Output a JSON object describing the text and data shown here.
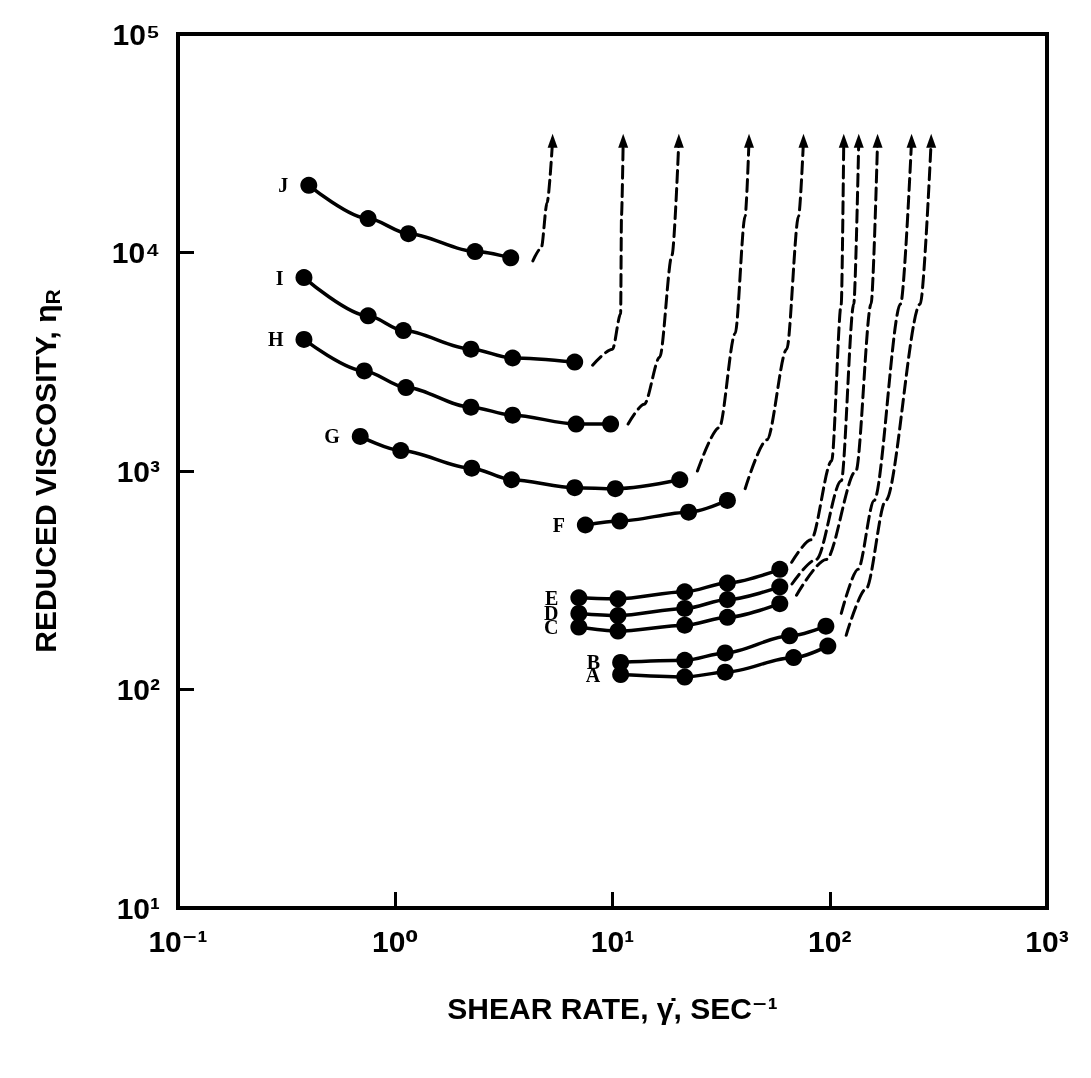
{
  "chart_data": {
    "type": "line",
    "xlabel": "SHEAR RATE, γ̇, SEC⁻¹",
    "ylabel": "REDUCED VISCOSITY, η$_{R}$",
    "log": "xy",
    "marker": "circle",
    "line_style": "solid",
    "grid": false,
    "xlim": [
      0.1,
      1000
    ],
    "ylim": [
      10,
      100000
    ],
    "xticks": [
      {
        "value": 0.1,
        "label": "10⁻¹"
      },
      {
        "value": 1,
        "label": "10⁰"
      },
      {
        "value": 10,
        "label": "10¹"
      },
      {
        "value": 100,
        "label": "10²"
      },
      {
        "value": 1000,
        "label": "10³"
      }
    ],
    "yticks": [
      {
        "value": 10,
        "label": "10¹"
      },
      {
        "value": 100,
        "label": "10²"
      },
      {
        "value": 1000,
        "label": "10³"
      },
      {
        "value": 10000,
        "label": "10⁴"
      },
      {
        "value": 100000,
        "label": "10⁵"
      }
    ],
    "series": [
      {
        "name": "J",
        "color": "#000000",
        "x": [
          0.4,
          0.75,
          1.15,
          2.33,
          3.4
        ],
        "values": [
          20300,
          14300,
          12200,
          10100,
          9450
        ]
      },
      {
        "name": "I",
        "color": "#000000",
        "x": [
          0.38,
          0.75,
          1.09,
          2.23,
          3.47,
          6.7
        ],
        "values": [
          7680,
          5130,
          4390,
          3610,
          3290,
          3150
        ]
      },
      {
        "name": "H",
        "color": "#000000",
        "x": [
          0.38,
          0.72,
          1.12,
          2.23,
          3.47,
          6.8,
          9.8
        ],
        "values": [
          4000,
          2870,
          2410,
          1960,
          1800,
          1640,
          1640
        ]
      },
      {
        "name": "G",
        "color": "#000000",
        "x": [
          0.69,
          1.06,
          2.25,
          3.43,
          6.7,
          10.3,
          20.4
        ],
        "values": [
          1440,
          1240,
          1030,
          912,
          839,
          830,
          912
        ]
      },
      {
        "name": "F",
        "color": "#000000",
        "x": [
          7.5,
          10.8,
          22.4,
          33.8
        ],
        "values": [
          566,
          590,
          648,
          733
        ]
      },
      {
        "name": "E",
        "color": "#000000",
        "x": [
          7,
          10.6,
          21.5,
          33.8,
          58.9
        ],
        "values": [
          263,
          260,
          280,
          307,
          355
        ]
      },
      {
        "name": "D",
        "color": "#000000",
        "x": [
          7,
          10.6,
          21.5,
          33.8,
          58.9
        ],
        "values": [
          223,
          218,
          235,
          258,
          295
        ]
      },
      {
        "name": "C",
        "color": "#000000",
        "x": [
          7,
          10.6,
          21.5,
          33.8,
          58.9
        ],
        "values": [
          193,
          185,
          197,
          214,
          247
        ]
      },
      {
        "name": "B",
        "color": "#000000",
        "x": [
          10.9,
          21.5,
          33,
          65.4,
          96
        ],
        "values": [
          133,
          136,
          147,
          176,
          195
        ]
      },
      {
        "name": "A",
        "color": "#000000",
        "x": [
          10.9,
          21.5,
          33,
          68.2,
          98
        ],
        "values": [
          117,
          114,
          120,
          140,
          158
        ]
      },
      {
        "color": "#000000",
        "marker": "none",
        "line_style": "dashed",
        "x": [
          4.3,
          4.7,
          5,
          5.3
        ],
        "values": [
          9160,
          10500,
          16900,
          32500
        ]
      },
      {
        "color": "#000000",
        "marker": "none",
        "line_style": "dashed",
        "x": [
          8.1,
          10,
          10.9,
          11,
          11.2
        ],
        "values": [
          3050,
          3610,
          5240,
          14700,
          32500
        ]
      },
      {
        "color": "#000000",
        "marker": "none",
        "line_style": "dashed",
        "x": [
          11.8,
          14,
          16.5,
          18.8,
          20.2
        ],
        "values": [
          1640,
          2020,
          3320,
          9750,
          32500
        ]
      },
      {
        "color": "#000000",
        "marker": "none",
        "line_style": "dashed",
        "x": [
          24.6,
          31,
          36.7,
          40.8,
          42.5
        ],
        "values": [
          1000,
          1580,
          4260,
          14700,
          32500
        ]
      },
      {
        "color": "#000000",
        "marker": "none",
        "line_style": "dashed",
        "x": [
          40.8,
          51.4,
          63.4,
          71.9,
          75.7
        ],
        "values": [
          830,
          1390,
          3610,
          14700,
          32500
        ]
      },
      {
        "color": "#000000",
        "marker": "none",
        "line_style": "dashed",
        "x": [
          66.8,
          82,
          102,
          113,
          116
        ],
        "values": [
          382,
          484,
          1110,
          5810,
          32500
        ]
      },
      {
        "color": "#000000",
        "marker": "none",
        "line_style": "dashed",
        "x": [
          67,
          86.7,
          113,
          129,
          136
        ],
        "values": [
          304,
          394,
          902,
          5810,
          32500
        ]
      },
      {
        "color": "#000000",
        "marker": "none",
        "line_style": "dashed",
        "x": [
          70.3,
          96.4,
          132,
          155,
          166
        ],
        "values": [
          270,
          394,
          1000,
          5810,
          32500
        ]
      },
      {
        "color": "#000000",
        "marker": "none",
        "line_style": "dashed",
        "x": [
          113,
          135,
          160,
          212,
          238
        ],
        "values": [
          223,
          355,
          733,
          5810,
          32500
        ]
      },
      {
        "color": "#000000",
        "marker": "none",
        "line_style": "dashed",
        "x": [
          119,
          147,
          181,
          261,
          293
        ],
        "values": [
          177,
          289,
          733,
          5810,
          32500
        ]
      }
    ]
  }
}
